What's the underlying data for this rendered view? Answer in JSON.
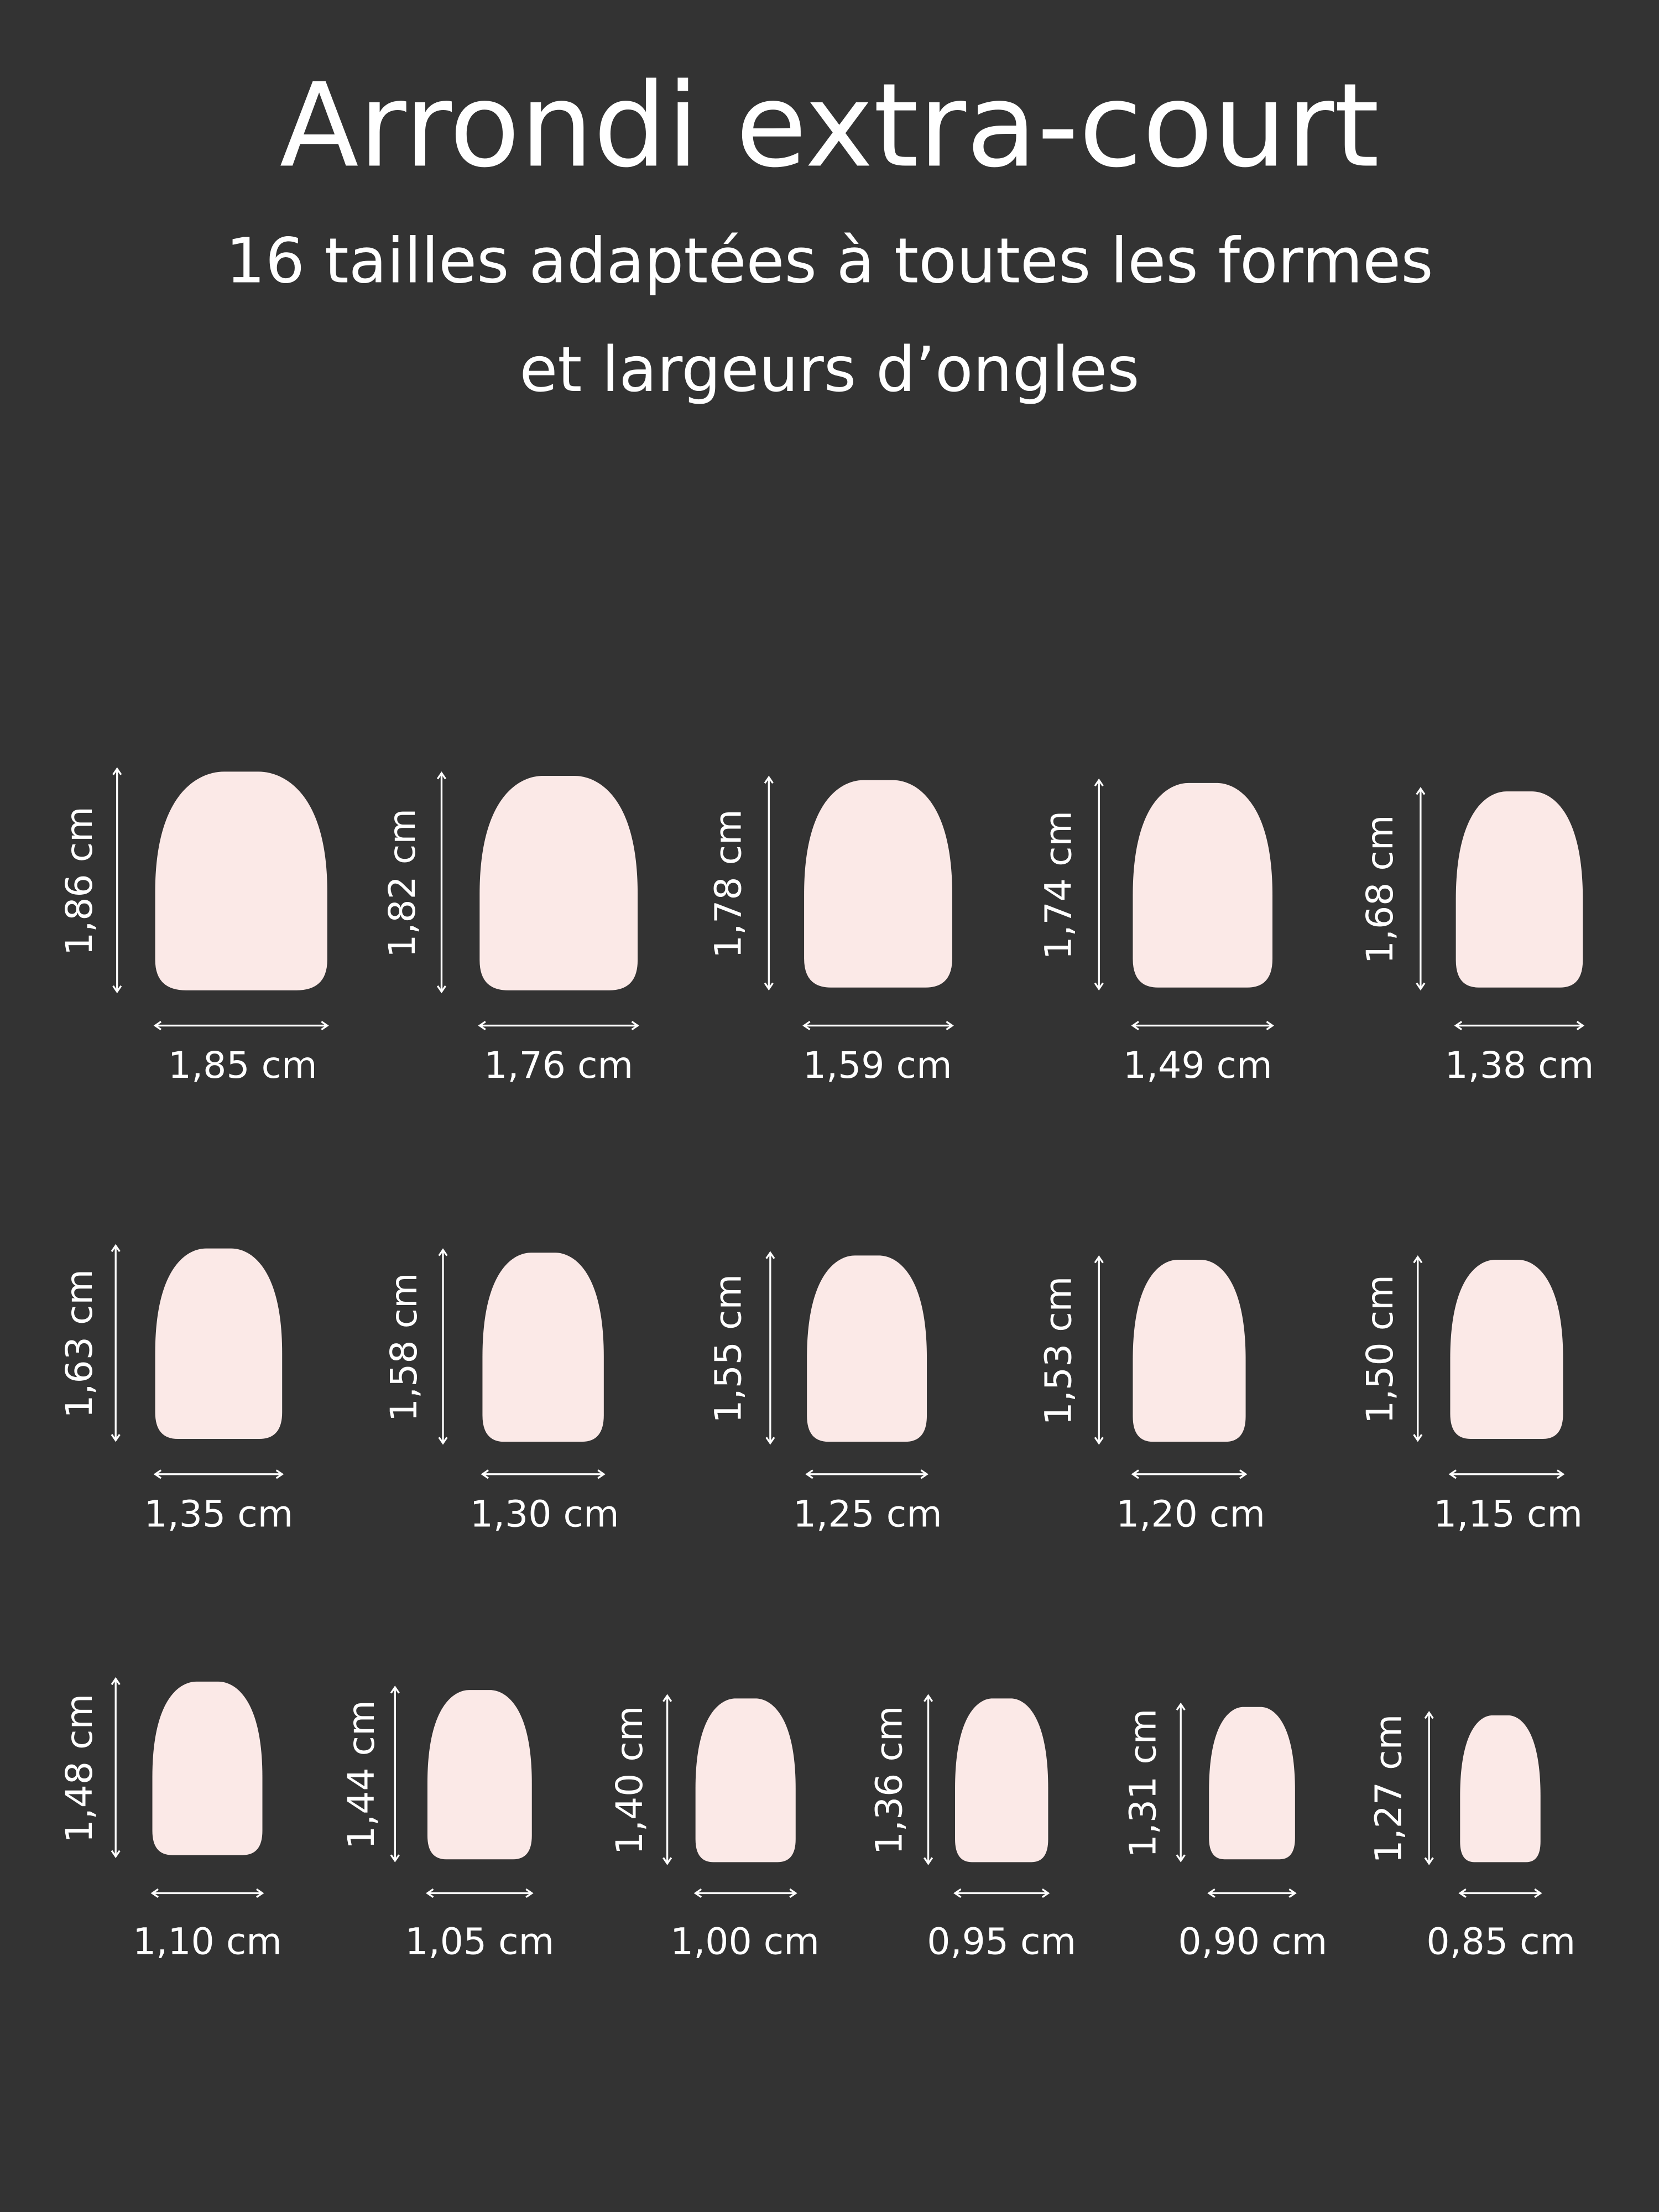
{
  "header": {
    "title": "Arrondi extra-court",
    "subtitle": [
      "16 tailles adaptées à toutes les formes",
      "et largeurs d’ongles"
    ]
  },
  "sizes": [
    {
      "height": "1,86 cm",
      "width": "1,85 cm"
    },
    {
      "height": "1,82 cm",
      "width": "1,76 cm"
    },
    {
      "height": "1,78 cm",
      "width": "1,59 cm"
    },
    {
      "height": "1,74 cm",
      "width": "1,49 cm"
    },
    {
      "height": "1,68 cm",
      "width": "1,38 cm"
    },
    {
      "height": "1,63 cm",
      "width": "1,35 cm"
    },
    {
      "height": "1,58 cm",
      "width": "1,30 cm"
    },
    {
      "height": "1,55 cm",
      "width": "1,25 cm"
    },
    {
      "height": "1,53 cm",
      "width": "1,20 cm"
    },
    {
      "height": "1,50 cm",
      "width": "1,15 cm"
    },
    {
      "height": "1,48 cm",
      "width": "1,10 cm"
    },
    {
      "height": "1,44 cm",
      "width": "1,05 cm"
    },
    {
      "height": "1,40 cm",
      "width": "1,00 cm"
    },
    {
      "height": "1,36 cm",
      "width": "0,95 cm"
    },
    {
      "height": "1,31 cm",
      "width": "0,90 cm"
    },
    {
      "height": "1,27 cm",
      "width": "0,85 cm"
    }
  ]
}
